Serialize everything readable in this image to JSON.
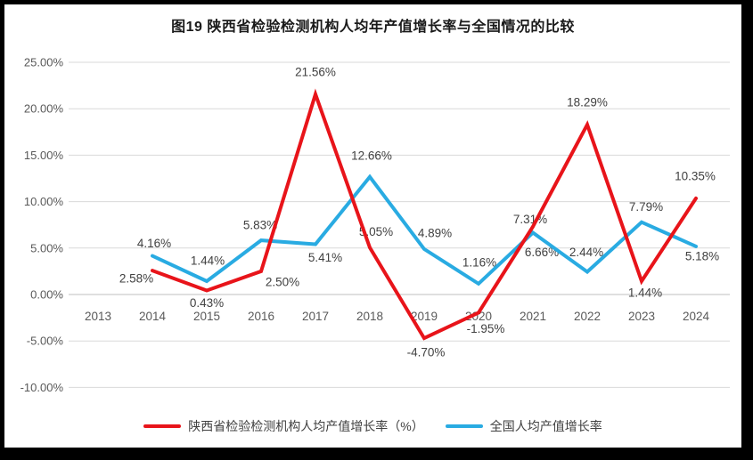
{
  "title": "图19 陕西省检验检测机构人均年产值增长率与全国情况的比较",
  "chart_data": {
    "type": "line",
    "title": "图19 陕西省检验检测机构人均年产值增长率与全国情况的比较",
    "categories": [
      "2013",
      "2014",
      "2015",
      "2016",
      "2017",
      "2018",
      "2019",
      "2020",
      "2021",
      "2022",
      "2023",
      "2024"
    ],
    "ylim": [
      -10,
      25
    ],
    "grid": true,
    "legend_position": "bottom",
    "y_ticks": [
      {
        "label": "25.00%",
        "value": 25
      },
      {
        "label": "20.00%",
        "value": 20
      },
      {
        "label": "15.00%",
        "value": 15
      },
      {
        "label": "10.00%",
        "value": 10
      },
      {
        "label": "5.00%",
        "value": 5
      },
      {
        "label": "0.00%",
        "value": 0
      },
      {
        "label": "-5.00%",
        "value": -5
      },
      {
        "label": "-10.00%",
        "value": -10
      }
    ],
    "series": [
      {
        "key": "shaanxi",
        "name": "陕西省检验检测机构人均产值增长率（%）",
        "color": "#e8141a",
        "values": [
          null,
          2.58,
          0.43,
          2.5,
          21.56,
          5.05,
          -4.7,
          -1.95,
          7.31,
          18.29,
          1.44,
          10.35
        ],
        "point_labels": [
          null,
          "2.58%",
          "0.43%",
          "2.50%",
          "21.56%",
          "5.05%",
          "-4.70%",
          "-1.95%",
          "7.31%",
          "18.29%",
          "1.44%",
          "10.35%"
        ],
        "label_offsets": [
          null,
          [
            -18,
            9
          ],
          [
            0,
            14
          ],
          [
            24,
            12
          ],
          [
            0,
            -25
          ],
          [
            7,
            -18
          ],
          [
            2,
            16
          ],
          [
            8,
            18
          ],
          [
            -3,
            -8
          ],
          [
            0,
            -25
          ],
          [
            4,
            13
          ],
          [
            -1,
            -25
          ]
        ]
      },
      {
        "key": "national",
        "name": "全国人均产值增长率",
        "color": "#29abe2",
        "values": [
          null,
          4.16,
          1.44,
          5.83,
          5.41,
          12.66,
          4.89,
          1.16,
          6.66,
          2.44,
          7.79,
          5.18
        ],
        "point_labels": [
          null,
          "4.16%",
          "1.44%",
          "5.83%",
          "5.41%",
          "12.66%",
          "4.89%",
          "1.16%",
          "6.66%",
          "2.44%",
          "7.79%",
          "5.18%"
        ],
        "label_offsets": [
          null,
          [
            2,
            -14
          ],
          [
            1,
            -23
          ],
          [
            -1,
            -17
          ],
          [
            11,
            15
          ],
          [
            2,
            -24
          ],
          [
            12,
            -18
          ],
          [
            1,
            -24
          ],
          [
            10,
            22
          ],
          [
            -1,
            -22
          ],
          [
            5,
            -17
          ],
          [
            7,
            11
          ]
        ]
      }
    ],
    "draw_order": [
      1,
      0
    ],
    "colors": {
      "grid": "#d9d9d9",
      "axis": "#bfbfbf",
      "tick_label": "#595959",
      "data_label": "#404040",
      "frame": "#000000",
      "background": "#ffffff"
    }
  }
}
